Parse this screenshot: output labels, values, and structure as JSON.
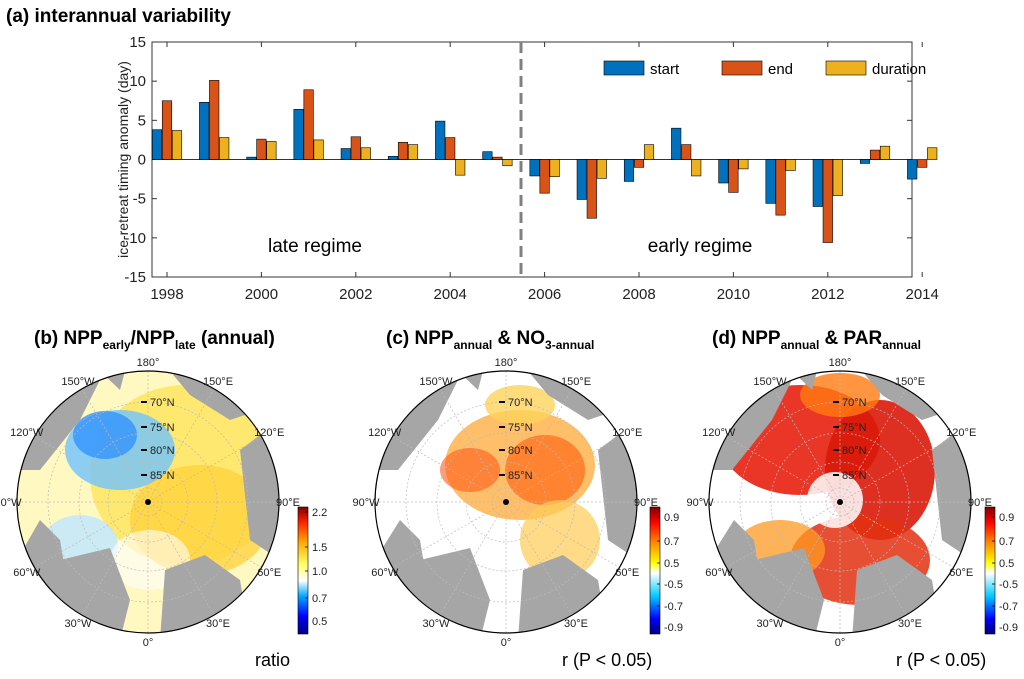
{
  "chart_data": [
    {
      "type": "bar",
      "panel": "(a)",
      "title": "(a) interannual variability",
      "ylabel": "ice-retreat timing anomaly (day)",
      "xlabel": "",
      "ylim": [
        -15,
        15
      ],
      "yticks": [
        -15,
        -10,
        -5,
        0,
        5,
        10,
        15
      ],
      "xtick_labels": [
        "1998",
        "2000",
        "2002",
        "2004",
        "2006",
        "2008",
        "2010",
        "2012",
        "2014"
      ],
      "categories": [
        "1998",
        "1999",
        "2000",
        "2001",
        "2002",
        "2003",
        "2004",
        "2005",
        "2006",
        "2007",
        "2008",
        "2009",
        "2010",
        "2011",
        "2012",
        "2013",
        "2014"
      ],
      "series": [
        {
          "name": "start",
          "color": "#0072BD",
          "values": [
            3.8,
            7.3,
            0.3,
            6.4,
            1.4,
            0.4,
            4.9,
            1.0,
            -2.1,
            -5.1,
            -2.8,
            4.0,
            -3.0,
            -5.6,
            -6.0,
            -0.5,
            -2.5
          ]
        },
        {
          "name": "end",
          "color": "#D95319",
          "values": [
            7.5,
            10.1,
            2.6,
            8.9,
            2.9,
            2.2,
            2.8,
            0.3,
            -4.3,
            -7.5,
            -1.0,
            1.9,
            -4.2,
            -7.1,
            -10.6,
            1.2,
            -1.0
          ]
        },
        {
          "name": "duration",
          "color": "#EDB120",
          "values": [
            3.7,
            2.8,
            2.3,
            2.5,
            1.5,
            1.9,
            -2.0,
            -0.8,
            -2.2,
            -2.4,
            1.9,
            -2.1,
            -1.2,
            -1.4,
            -4.6,
            1.7,
            1.5
          ]
        }
      ],
      "annotations": [
        "late regime",
        "early regime"
      ],
      "divider_year": 2005.5,
      "legend_position": "top-right",
      "grid": false
    },
    {
      "type": "map",
      "panel": "(b)",
      "colorbar_ticks": [
        "2.2",
        "1.5",
        "1.0",
        "0.7",
        "0.5"
      ],
      "colorbar_label": "ratio",
      "colormap": [
        "#000080",
        "#0000ff",
        "#00aaff",
        "#ffffff",
        "#ffff66",
        "#ffaa00",
        "#ff2200",
        "#800000"
      ]
    },
    {
      "type": "map",
      "panel": "(c)",
      "colorbar_ticks": [
        "0.9",
        "0.7",
        "0.5",
        "-0.5",
        "-0.7",
        "-0.9"
      ],
      "colorbar_label": "r (P < 0.05)",
      "colormap": [
        "#000080",
        "#0000ff",
        "#00ccff",
        "#ffffff",
        "#ffff00",
        "#ff8800",
        "#ff0000",
        "#800000"
      ]
    },
    {
      "type": "map",
      "panel": "(d)",
      "colorbar_ticks": [
        "0.9",
        "0.7",
        "0.5",
        "-0.5",
        "-0.7",
        "-0.9"
      ],
      "colorbar_label": "r (P < 0.05)",
      "colormap": [
        "#000080",
        "#0000ff",
        "#00ccff",
        "#ffffff",
        "#ffff00",
        "#ff8800",
        "#ff0000",
        "#800000"
      ]
    }
  ],
  "panels": {
    "a_title": "(a) interannual variability",
    "b_title": {
      "p1": "(b) NPP",
      "s1": "early",
      "p2": "/NPP",
      "s2": "late",
      "p3": " (annual)"
    },
    "c_title": {
      "p1": "(c) NPP",
      "s1": "annual",
      "p2": " & NO",
      "s2": "3-annual"
    },
    "d_title": {
      "p1": "(d) NPP",
      "s1": "annual",
      "p2": " & PAR",
      "s2": "annual"
    }
  },
  "map_labels": {
    "lon": [
      "180°",
      "150°E",
      "120°E",
      "90°E",
      "60°E",
      "30°E",
      "0°",
      "30°W",
      "60°W",
      "90°W",
      "120°W",
      "150°W"
    ],
    "lat": [
      "70°N",
      "75°N",
      "80°N",
      "85°N"
    ]
  },
  "colors": {
    "land": "#a6a6a6",
    "ocean_low": "#ffffff",
    "divider": "#808080"
  }
}
